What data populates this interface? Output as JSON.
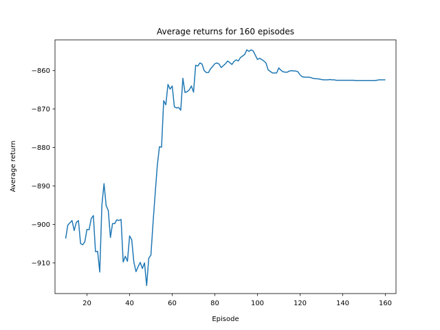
{
  "chart_data": {
    "type": "line",
    "title": "Average returns for 160 episodes",
    "xlabel": "Episode",
    "ylabel": "Average return",
    "xlim": [
      5,
      165
    ],
    "ylim": [
      -918,
      -852
    ],
    "xticks": [
      20,
      40,
      60,
      80,
      100,
      120,
      140,
      160
    ],
    "yticks": [
      -910,
      -900,
      -890,
      -880,
      -870,
      -860
    ],
    "grid": false,
    "line_color": "#1f77b4",
    "series": [
      {
        "x": [
          10,
          11,
          12,
          13,
          14,
          15,
          16,
          17,
          18,
          19,
          20,
          21,
          22,
          23,
          24,
          25,
          26,
          27,
          28,
          29,
          30,
          31,
          32,
          33,
          34,
          35,
          36,
          37,
          38,
          39,
          40,
          41,
          42,
          43,
          44,
          45,
          46,
          47,
          48,
          49,
          50,
          51,
          52,
          53,
          54,
          55,
          56,
          57,
          58,
          59,
          60,
          61,
          62,
          63,
          64,
          65,
          66,
          67,
          68,
          69,
          70,
          71,
          72,
          73,
          74,
          75,
          76,
          77,
          78,
          79,
          80,
          81,
          82,
          83,
          84,
          85,
          86,
          87,
          88,
          89,
          90,
          91,
          92,
          93,
          94,
          95,
          96,
          97,
          98,
          99,
          100,
          101,
          102,
          103,
          104,
          105,
          106,
          107,
          108,
          109,
          110,
          111,
          112,
          113,
          114,
          115,
          116,
          117,
          118,
          119,
          120,
          121,
          122,
          123,
          124,
          125,
          126,
          127,
          128,
          129,
          130,
          131,
          132,
          133,
          134,
          135,
          136,
          137,
          138,
          139,
          140,
          141,
          142,
          143,
          144,
          145,
          146,
          147,
          148,
          149,
          150,
          151,
          152,
          153,
          154,
          155,
          156,
          157,
          158,
          159,
          160
        ],
        "y": [
          -903.7,
          -900.2,
          -899.6,
          -899.0,
          -901.6,
          -899.5,
          -899.0,
          -905.0,
          -905.3,
          -904.5,
          -901.3,
          -901.4,
          -898.5,
          -897.7,
          -907.1,
          -907.0,
          -912.4,
          -895.0,
          -889.4,
          -895.1,
          -896.4,
          -903.4,
          -899.8,
          -899.8,
          -898.8,
          -899.0,
          -898.7,
          -909.8,
          -908.3,
          -909.6,
          -903.0,
          -904.0,
          -909.8,
          -912.3,
          -911.0,
          -909.9,
          -911.5,
          -910.0,
          -915.9,
          -908.8,
          -908.0,
          -899.6,
          -892.0,
          -884.7,
          -879.8,
          -879.9,
          -867.8,
          -868.9,
          -863.6,
          -864.8,
          -864.0,
          -869.4,
          -869.7,
          -869.6,
          -870.3,
          -862.0,
          -865.7,
          -865.5,
          -865.0,
          -864.0,
          -865.6,
          -858.6,
          -858.8,
          -858.0,
          -858.3,
          -860.0,
          -860.5,
          -860.5,
          -859.5,
          -858.9,
          -858.2,
          -858.0,
          -858.3,
          -859.2,
          -858.7,
          -858.2,
          -857.5,
          -857.9,
          -858.4,
          -857.6,
          -857.2,
          -857.5,
          -856.6,
          -856.2,
          -855.8,
          -854.6,
          -855.0,
          -854.6,
          -854.9,
          -856.0,
          -857.1,
          -856.8,
          -857.1,
          -857.5,
          -858.0,
          -859.8,
          -860.2,
          -860.6,
          -860.6,
          -860.6,
          -859.3,
          -859.9,
          -860.3,
          -860.4,
          -860.4,
          -860.1,
          -860.0,
          -860.1,
          -860.1,
          -860.3,
          -861.1,
          -861.6,
          -861.7,
          -861.7,
          -861.7,
          -861.8,
          -862.0,
          -862.1,
          -862.1,
          -862.2,
          -862.3,
          -862.4,
          -862.4,
          -862.4,
          -862.3,
          -862.4,
          -862.4,
          -862.5,
          -862.5,
          -862.5,
          -862.5,
          -862.5,
          -862.5,
          -862.5,
          -862.5,
          -862.5,
          -862.6,
          -862.6,
          -862.6,
          -862.6,
          -862.6,
          -862.6,
          -862.6,
          -862.6,
          -862.6,
          -862.6,
          -862.5,
          -862.4,
          -862.4,
          -862.4,
          -862.4
        ]
      }
    ]
  }
}
